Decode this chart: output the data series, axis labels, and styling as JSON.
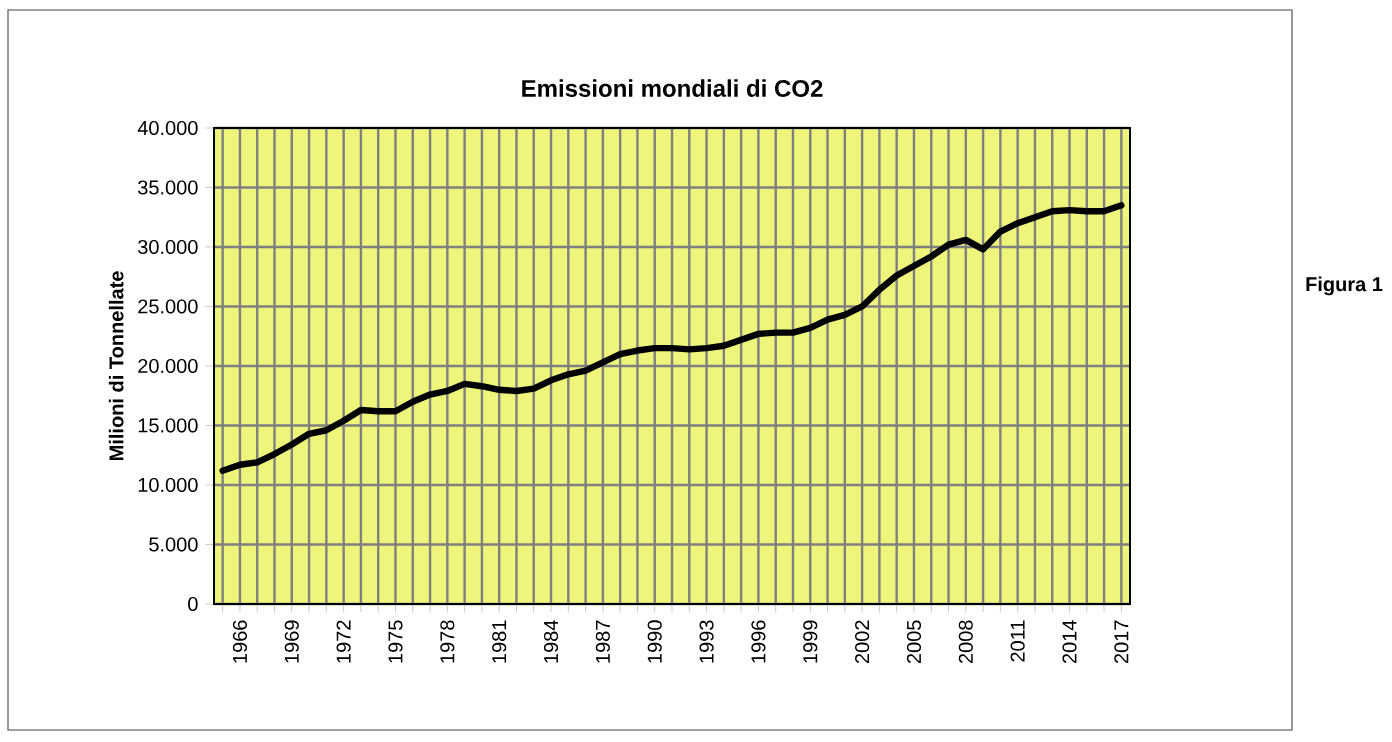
{
  "chart_data": {
    "type": "line",
    "title": "Emissioni mondiali di CO2",
    "ylabel": "Milioni di Tonnellate",
    "annotations": [
      "Figura 1"
    ],
    "categories": [
      null,
      "1966",
      null,
      null,
      "1969",
      null,
      null,
      "1972",
      null,
      null,
      "1975",
      null,
      null,
      "1978",
      null,
      null,
      "1981",
      null,
      null,
      "1984",
      null,
      null,
      "1987",
      null,
      null,
      "1990",
      null,
      null,
      "1993",
      null,
      null,
      "1996",
      null,
      null,
      "1999",
      null,
      null,
      "2002",
      null,
      null,
      "2005",
      null,
      null,
      "2008",
      null,
      null,
      "2011",
      null,
      null,
      "2014",
      null,
      null,
      "2017"
    ],
    "series": [
      {
        "color": "#000000",
        "values": [
          11200,
          11700,
          11900,
          12600,
          13400,
          14300,
          14600,
          15400,
          16300,
          16200,
          16200,
          17000,
          17600,
          17900,
          18500,
          18300,
          18000,
          17900,
          18100,
          18800,
          19300,
          19600,
          20300,
          21000,
          21300,
          21500,
          21500,
          21400,
          21500,
          21700,
          22200,
          22700,
          22800,
          22800,
          23200,
          23900,
          24300,
          25000,
          26400,
          27600,
          28400,
          29200,
          30200,
          30600,
          29800,
          31300,
          32000,
          32500,
          33000,
          33100,
          33000,
          33000,
          33500
        ]
      }
    ],
    "ylim": [
      0,
      40000
    ],
    "yticks": [
      0,
      {
        "value": 5000,
        "label": "5.000"
      },
      {
        "value": 10000,
        "label": "10.000"
      },
      {
        "value": 15000,
        "label": "15.000"
      },
      {
        "value": 20000,
        "label": "20.000"
      },
      {
        "value": 25000,
        "label": "25.000"
      },
      {
        "value": 30000,
        "label": "30.000"
      },
      {
        "value": 35000,
        "label": "35.000"
      },
      {
        "value": 40000,
        "label": "40.000"
      }
    ],
    "grid": true
  }
}
